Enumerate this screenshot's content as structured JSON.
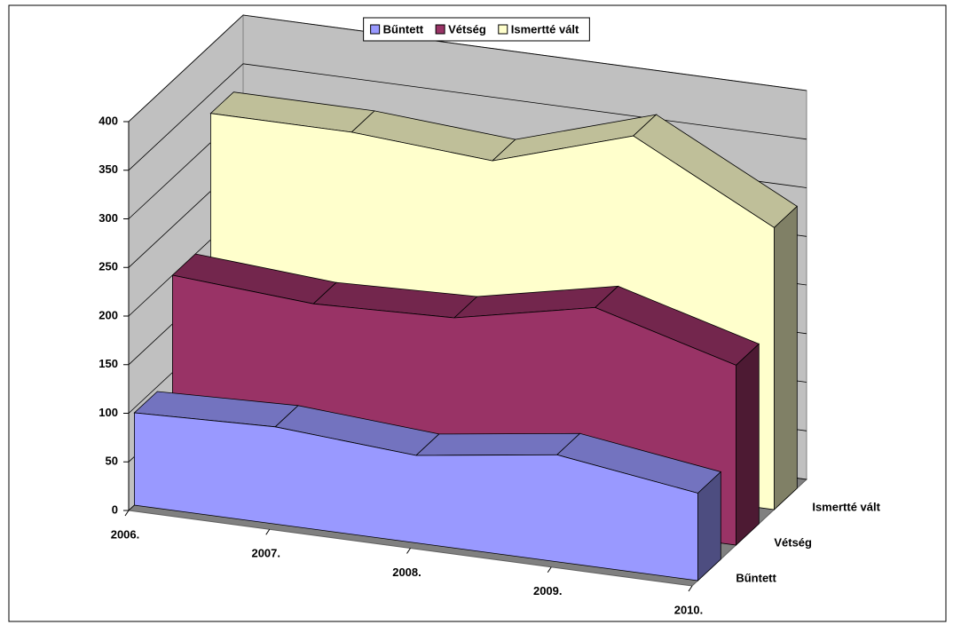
{
  "chart_data": {
    "type": "area3d",
    "categories": [
      "2006.",
      "2007.",
      "2008.",
      "2009.",
      "2010."
    ],
    "series": [
      {
        "name": "Bűntett",
        "color": "#9999ff",
        "values": [
          95,
          100,
          90,
          110,
          90
        ]
      },
      {
        "name": "Vétség",
        "color": "#993366",
        "values": [
          200,
          190,
          195,
          225,
          185
        ]
      },
      {
        "name": "Ismertté vált",
        "color": "#ffffcc",
        "values": [
          330,
          330,
          320,
          365,
          290
        ]
      }
    ],
    "ylim": [
      0,
      400
    ],
    "yticks": [
      0,
      50,
      100,
      150,
      200,
      250,
      300,
      350,
      400
    ],
    "grid": true,
    "legend": "top"
  }
}
